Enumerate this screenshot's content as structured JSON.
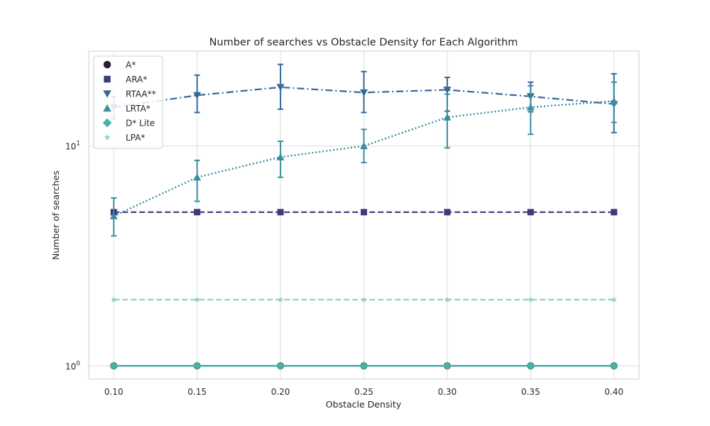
{
  "chart_data": {
    "type": "line",
    "title": "Number of searches vs Obstacle Density for Each Algorithm",
    "xlabel": "Obstacle Density",
    "ylabel": "Number of searches",
    "x": [
      0.1,
      0.15,
      0.2,
      0.25,
      0.3,
      0.35,
      0.4
    ],
    "x_tick_labels": [
      "0.10",
      "0.15",
      "0.20",
      "0.25",
      "0.30",
      "0.35",
      "0.40"
    ],
    "xlim": [
      0.085,
      0.415
    ],
    "y_scale": "log",
    "ylim": [
      0.87,
      27
    ],
    "y_ticks": [
      {
        "value": 1,
        "base": "10",
        "exp": "0"
      },
      {
        "value": 10,
        "base": "10",
        "exp": "1"
      }
    ],
    "grid": true,
    "legend_position": "top-left",
    "series": [
      {
        "name": "A*",
        "marker": "circle",
        "line": "solid",
        "color": "#2b1d35",
        "values": [
          1,
          1,
          1,
          1,
          1,
          1,
          1
        ]
      },
      {
        "name": "ARA*",
        "marker": "square",
        "line": "dashed",
        "color": "#3d3b78",
        "values": [
          5,
          5,
          5,
          5,
          5,
          5,
          5
        ]
      },
      {
        "name": "RTAA**",
        "marker": "triangle-down",
        "line": "dashdot",
        "color": "#35699a",
        "values": [
          15,
          17,
          18.5,
          17.5,
          18,
          16.8,
          15.5
        ],
        "error_low": [
          13.3,
          14.2,
          14.7,
          14.2,
          14.4,
          14.3,
          11.5
        ],
        "error_high": [
          16.8,
          21,
          23.5,
          21.8,
          20.5,
          19.5,
          21.3
        ]
      },
      {
        "name": "LRTA*",
        "marker": "triangle-up",
        "line": "dotted",
        "color": "#3a8ea0",
        "values": [
          4.8,
          7.2,
          8.9,
          10,
          13.5,
          15,
          16
        ],
        "error_low": [
          3.9,
          5.6,
          7.2,
          8.4,
          9.8,
          11.3,
          12.8
        ],
        "error_high": [
          5.8,
          8.6,
          10.5,
          11.9,
          17.2,
          18.8,
          19.5
        ]
      },
      {
        "name": "D* Lite",
        "marker": "diamond",
        "line": "solid",
        "color": "#4bb0a8",
        "values": [
          1,
          1,
          1,
          1,
          1,
          1,
          1
        ]
      },
      {
        "name": "LPA*",
        "marker": "star",
        "line": "dashed",
        "color": "#8ad7ae",
        "values": [
          2,
          2,
          2,
          2,
          2,
          2,
          2
        ]
      }
    ]
  }
}
